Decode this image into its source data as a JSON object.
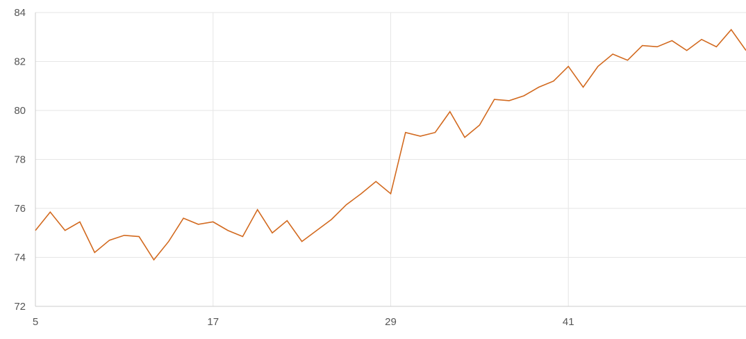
{
  "chart_data": {
    "type": "line",
    "title": "",
    "xlabel": "",
    "ylabel": "",
    "xlim": [
      5,
      53
    ],
    "ylim": [
      72,
      84
    ],
    "x_ticks": [
      5,
      17,
      29,
      41
    ],
    "y_ticks": [
      72,
      74,
      76,
      78,
      80,
      82,
      84
    ],
    "grid": true,
    "legend": "none",
    "colors": {
      "line": "#D2691E",
      "grid": "#E6E6E6",
      "axis": "#CCCCCC",
      "tick_text": "#555555"
    },
    "series": [
      {
        "x": [
          5,
          6,
          7,
          8,
          9,
          10,
          11,
          12,
          13,
          14,
          15,
          16,
          17,
          18,
          19,
          20,
          21,
          22,
          23,
          24,
          25,
          26,
          27,
          28,
          29,
          30,
          31,
          32,
          33,
          34,
          35,
          36,
          37,
          38,
          39,
          40,
          41,
          42,
          43,
          44,
          45,
          46,
          47,
          48,
          49,
          50,
          51,
          52,
          53
        ],
        "values": [
          75.1,
          75.85,
          75.1,
          75.45,
          74.2,
          74.7,
          74.9,
          74.85,
          73.9,
          74.65,
          75.6,
          75.35,
          75.45,
          75.1,
          74.85,
          75.95,
          75.0,
          75.5,
          74.65,
          75.1,
          75.55,
          76.15,
          76.6,
          77.1,
          76.6,
          79.1,
          78.95,
          79.1,
          79.95,
          78.9,
          79.4,
          80.45,
          80.4,
          80.6,
          80.95,
          81.2,
          81.8,
          80.95,
          81.8,
          82.3,
          82.05,
          82.65,
          82.6,
          82.85,
          82.45,
          82.9,
          82.6,
          83.3,
          82.45
        ]
      }
    ]
  }
}
